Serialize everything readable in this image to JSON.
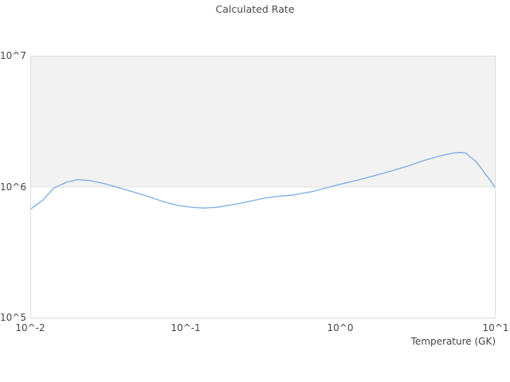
{
  "chart_data": {
    "type": "line",
    "title": "Calculated Rate",
    "xlabel": "Temperature (GK)",
    "ylabel": "",
    "x_scale": "log",
    "y_scale": "log",
    "xlim": [
      0.01,
      10
    ],
    "ylim": [
      100000,
      10000000
    ],
    "x_ticks": [
      "10^-2",
      "10^-1",
      "10^0",
      "10^1"
    ],
    "y_ticks_top_to_bottom": [
      "10^7",
      "10^6",
      "10^5"
    ],
    "grid": "off",
    "legend": "none",
    "line_color": "#7aabe5",
    "grid_line_color": "#e2e2e2",
    "highlight_band": {
      "from": 1000000,
      "to": 10000000,
      "color": "#f2f2f2"
    },
    "series": [
      {
        "name": "Calculated Rate",
        "x": [
          0.01,
          0.012,
          0.014,
          0.017,
          0.02,
          0.024,
          0.03,
          0.04,
          0.055,
          0.07,
          0.09,
          0.11,
          0.13,
          0.16,
          0.2,
          0.25,
          0.32,
          0.4,
          0.5,
          0.65,
          0.85,
          1.0,
          1.3,
          1.7,
          2.2,
          2.8,
          3.5,
          4.5,
          5.5,
          6.0,
          6.5,
          7.0,
          7.5,
          8.0,
          8.5,
          9.3,
          10.0
        ],
        "y": [
          680000,
          800000,
          980000,
          1090000,
          1140000,
          1120000,
          1060000,
          960000,
          860000,
          780000,
          720000,
          700000,
          690000,
          700000,
          730000,
          770000,
          820000,
          850000,
          870000,
          920000,
          1000000,
          1050000,
          1130000,
          1230000,
          1340000,
          1460000,
          1600000,
          1740000,
          1830000,
          1840000,
          1820000,
          1680000,
          1580000,
          1440000,
          1300000,
          1130000,
          1000000
        ]
      }
    ]
  }
}
